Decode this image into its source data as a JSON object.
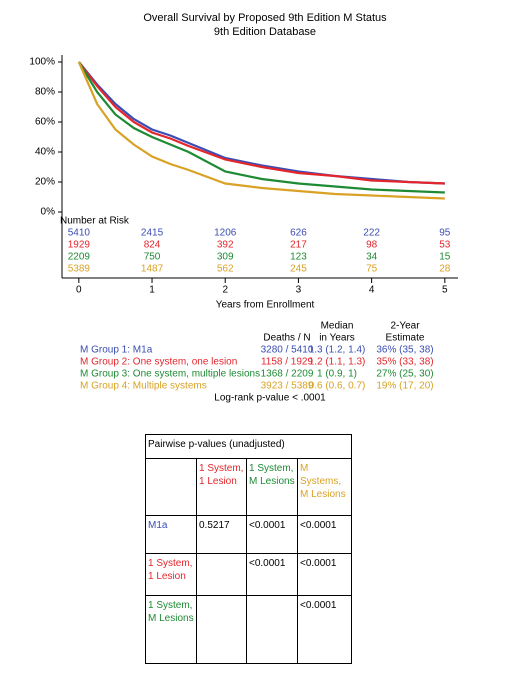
{
  "chart_data": {
    "type": "survival",
    "title": "Overall Survival by Proposed 9th Edition M Status",
    "subtitle": "9th Edition Database",
    "xlabel": "Years from Enrollment",
    "x": [
      0,
      0.25,
      0.5,
      0.75,
      1,
      1.25,
      1.5,
      2,
      2.5,
      3,
      3.5,
      4,
      4.5,
      5
    ],
    "xlim": [
      -0.23,
      5.18
    ],
    "xticks": [
      0,
      1,
      2,
      3,
      4,
      5
    ],
    "ylim": [
      0,
      104
    ],
    "yticks": [
      {
        "value": 0,
        "label": "0%"
      },
      {
        "value": 20,
        "label": "20%"
      },
      {
        "value": 40,
        "label": "40%"
      },
      {
        "value": 60,
        "label": "60%"
      },
      {
        "value": 80,
        "label": "80%"
      },
      {
        "value": 100,
        "label": "100%"
      }
    ],
    "at_risk_title": "Number at Risk",
    "at_risk_times": [
      0,
      1,
      2,
      3,
      4,
      5
    ],
    "legend_headers": [
      [
        "Deaths / N"
      ],
      [
        "Median",
        "in Years"
      ],
      [
        "2-Year",
        "Estimate"
      ]
    ],
    "footnote": "Log-rank p-value < .0001",
    "series": [
      {
        "name": "M Group 1: M1a",
        "color": "#3a4db3",
        "values": [
          100,
          85,
          72,
          62,
          55,
          51,
          46,
          36,
          31,
          27,
          24,
          22,
          20,
          19
        ],
        "at_risk": [
          5410,
          2415,
          1206,
          626,
          222,
          95
        ],
        "deaths_n": "3280 / 5410",
        "median": "1.3 (1.2, 1.4)",
        "estimate": "36% (35, 38)"
      },
      {
        "name": "M Group 2: One system, one lesion",
        "color": "#e3262c",
        "values": [
          100,
          84,
          70,
          60,
          53,
          49,
          44,
          35,
          30,
          26,
          24,
          21,
          20,
          19
        ],
        "at_risk": [
          1929,
          824,
          392,
          217,
          98,
          53
        ],
        "deaths_n": "1158 / 1929",
        "median": "1.2 (1.1, 1.3)",
        "estimate": "35% (33, 38)"
      },
      {
        "name": "M Group 3: One system, multiple lesions",
        "color": "#1e8a34",
        "values": [
          100,
          80,
          65,
          56,
          50,
          45,
          40,
          27,
          22,
          19,
          17,
          15,
          14,
          13
        ],
        "at_risk": [
          2209,
          750,
          309,
          123,
          34,
          15
        ],
        "deaths_n": "1368 / 2209",
        "median": "1 (0.9, 1)",
        "estimate": "27% (25, 30)"
      },
      {
        "name": "M Group 4: Multiple systems",
        "color": "#d9a225",
        "values": [
          100,
          72,
          55,
          45,
          37,
          32,
          28,
          19,
          16,
          14,
          12,
          11,
          10,
          9
        ],
        "at_risk": [
          5389,
          1487,
          562,
          245,
          75,
          28
        ],
        "deaths_n": "3923 / 5389",
        "median": "0.6 (0.6, 0.7)",
        "estimate": "19% (17, 20)"
      }
    ]
  },
  "pairwise_table": {
    "title": "Pairwise p-values (unadjusted)",
    "columns": [
      {
        "label": "1 System, 1 Lesion",
        "color": "#e3262c"
      },
      {
        "label": "1 System, M Lesions",
        "color": "#1e8a34"
      },
      {
        "label": "M Systems, M Lesions",
        "color": "#d9a225"
      }
    ],
    "rows": [
      {
        "label": "M1a",
        "color": "#3a4db3",
        "cells": [
          "0.5217",
          "<0.0001",
          "<0.0001"
        ]
      },
      {
        "label": "1 System, 1 Lesion",
        "color": "#e3262c",
        "cells": [
          null,
          "<0.0001",
          "<0.0001"
        ]
      },
      {
        "label": "1 System, M Lesions",
        "color": "#1e8a34",
        "cells": [
          null,
          null,
          "<0.0001"
        ]
      }
    ]
  }
}
